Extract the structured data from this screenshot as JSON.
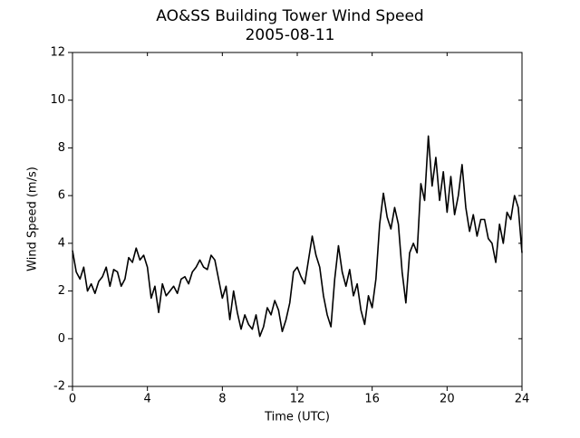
{
  "chart_data": {
    "type": "line",
    "title": "AO&SS Building Tower Wind Speed",
    "subtitle": "2005-08-11",
    "x_label": "Time (UTC)",
    "y_label": "Wind Speed (m/s)",
    "xlim": [
      0,
      24
    ],
    "xticks": [
      0,
      4,
      8,
      12,
      16,
      20,
      24
    ],
    "ylim": [
      -2,
      12
    ],
    "yticks": [
      -2,
      0,
      2,
      4,
      6,
      8,
      10,
      12
    ],
    "series": [
      {
        "color": "#000000",
        "x": [
          0,
          0.2,
          0.4,
          0.6,
          0.8,
          1,
          1.2,
          1.4,
          1.6,
          1.8,
          2,
          2.2,
          2.4,
          2.6,
          2.8,
          3,
          3.2,
          3.4,
          3.6,
          3.8,
          4,
          4.2,
          4.4,
          4.6,
          4.8,
          5,
          5.2,
          5.4,
          5.6,
          5.8,
          6,
          6.2,
          6.4,
          6.6,
          6.8,
          7,
          7.2,
          7.4,
          7.6,
          7.8,
          8,
          8.2,
          8.4,
          8.6,
          8.8,
          9,
          9.2,
          9.4,
          9.6,
          9.8,
          10,
          10.2,
          10.4,
          10.6,
          10.8,
          11,
          11.2,
          11.4,
          11.6,
          11.8,
          12,
          12.2,
          12.4,
          12.6,
          12.8,
          13,
          13.2,
          13.4,
          13.6,
          13.8,
          14,
          14.2,
          14.4,
          14.6,
          14.8,
          15,
          15.2,
          15.4,
          15.6,
          15.8,
          16,
          16.2,
          16.4,
          16.6,
          16.8,
          17,
          17.2,
          17.4,
          17.6,
          17.8,
          18,
          18.2,
          18.4,
          18.6,
          18.8,
          19,
          19.2,
          19.4,
          19.6,
          19.8,
          20,
          20.2,
          20.4,
          20.6,
          20.8,
          21,
          21.2,
          21.4,
          21.6,
          21.8,
          22,
          22.2,
          22.4,
          22.6,
          22.8,
          23,
          23.2,
          23.4,
          23.6,
          23.8,
          24
        ],
        "values": [
          3.7,
          2.8,
          2.5,
          3.0,
          2.0,
          2.3,
          1.9,
          2.4,
          2.6,
          3.0,
          2.2,
          2.9,
          2.8,
          2.2,
          2.5,
          3.4,
          3.2,
          3.8,
          3.3,
          3.5,
          3.0,
          1.7,
          2.2,
          1.1,
          2.3,
          1.8,
          2.0,
          2.2,
          1.9,
          2.5,
          2.6,
          2.3,
          2.8,
          3.0,
          3.3,
          3.0,
          2.9,
          3.5,
          3.3,
          2.5,
          1.7,
          2.2,
          0.8,
          2.0,
          1.1,
          0.4,
          1.0,
          0.6,
          0.4,
          1.0,
          0.1,
          0.5,
          1.3,
          1.0,
          1.6,
          1.2,
          0.3,
          0.8,
          1.5,
          2.8,
          3.0,
          2.6,
          2.3,
          3.3,
          4.3,
          3.5,
          3.0,
          1.8,
          1.0,
          0.5,
          2.5,
          3.9,
          2.8,
          2.2,
          2.9,
          1.8,
          2.3,
          1.2,
          0.6,
          1.8,
          1.3,
          2.5,
          4.8,
          6.1,
          5.1,
          4.6,
          5.5,
          4.8,
          2.8,
          1.5,
          3.6,
          4.0,
          3.6,
          6.5,
          5.8,
          8.5,
          6.4,
          7.6,
          5.8,
          7.0,
          5.3,
          6.8,
          5.2,
          6.0,
          7.3,
          5.5,
          4.5,
          5.2,
          4.3,
          5.0,
          5.0,
          4.2,
          4.0,
          3.2,
          4.8,
          4.0,
          5.3,
          5.0,
          6.0,
          5.5,
          3.6
        ]
      }
    ]
  }
}
